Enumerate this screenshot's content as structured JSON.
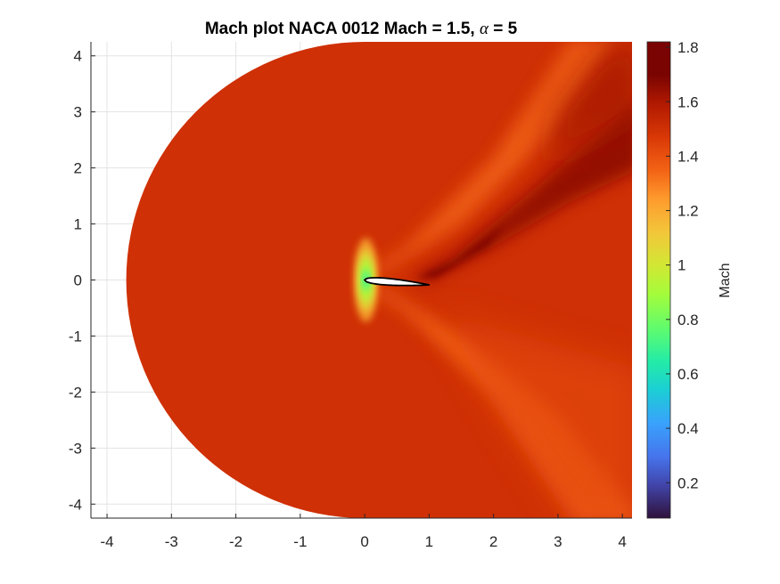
{
  "chart_data": {
    "type": "heatmap",
    "title_main": "Mach plot NACA 0012 Mach = 1.5, ",
    "title_symbol": "α",
    "title_end": " = 5",
    "xlim": [
      -4.25,
      4.15
    ],
    "ylim": [
      -4.25,
      4.25
    ],
    "x_ticks": [
      -4,
      -3,
      -2,
      -1,
      0,
      1,
      2,
      3,
      4
    ],
    "y_ticks": [
      -4,
      -3,
      -2,
      -1,
      0,
      1,
      2,
      3,
      4
    ],
    "grid": true,
    "domain": {
      "shape": "half-disc upstream + rectangle downstream",
      "radius": 4.25,
      "downstream_x_max": 4.15
    },
    "airfoil": {
      "name": "NACA 0012",
      "chord_start": 0,
      "chord_end": 1,
      "thickness_ratio": 0.12,
      "angle_of_attack_deg": 5
    },
    "freestream_mach": 1.5,
    "features": {
      "stagnation_min_mach": 0.7,
      "upper_expansion_max_mach": 1.8,
      "shock_post_mach": 1.35
    },
    "colorbar": {
      "label": "Mach",
      "range": [
        0.07,
        1.82
      ],
      "ticks": [
        0.2,
        0.4,
        0.6,
        0.8,
        1,
        1.2,
        1.4,
        1.6,
        1.8
      ],
      "colormap": "turbo"
    }
  }
}
